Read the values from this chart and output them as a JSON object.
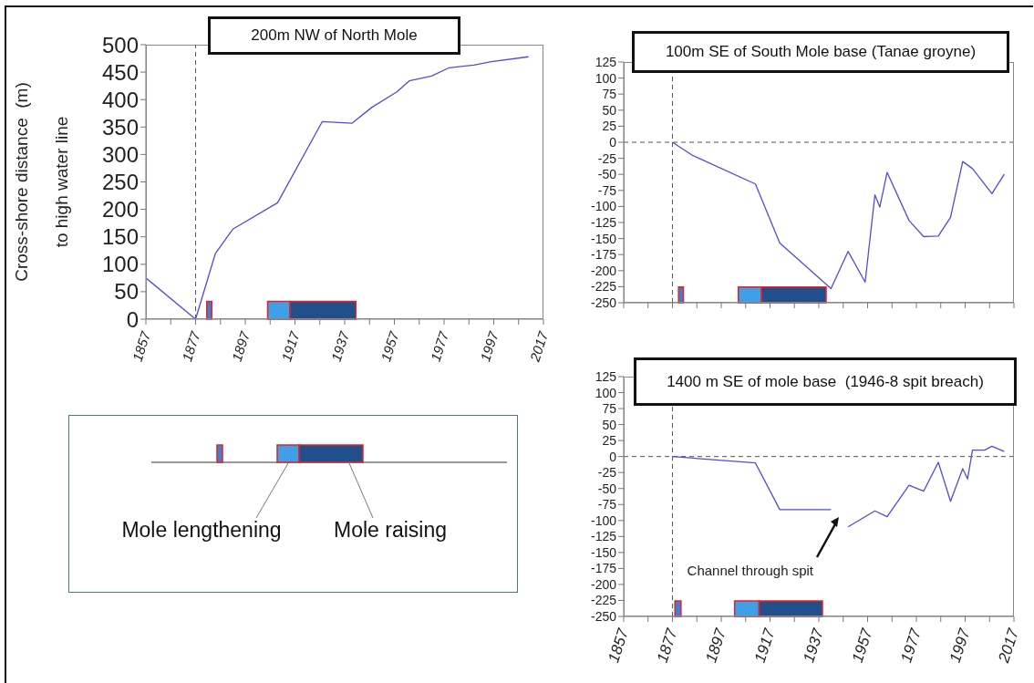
{
  "chart_data": [
    {
      "type": "line",
      "title": "200m NW of North Mole",
      "ylabel": "Cross-shore distance  (m)\nto high water line",
      "x": [
        1857,
        1877,
        1885,
        1892,
        1910,
        1928,
        1940,
        1948,
        1958,
        1963,
        1972,
        1979,
        1989,
        1996,
        2011
      ],
      "values": [
        75,
        0,
        120,
        164,
        212,
        360,
        357,
        386,
        414,
        434,
        443,
        458,
        463,
        469,
        478
      ],
      "color": "#4c4ce0",
      "marker": "none",
      "line_style": "solid",
      "xlim": [
        1857,
        2017
      ],
      "xticks": [
        1857,
        {
          "value": 1867,
          "label": null
        },
        1877,
        {
          "value": 1887,
          "label": null
        },
        1897,
        {
          "value": 1907,
          "label": null
        },
        1917,
        {
          "value": 1927,
          "label": null
        },
        1937,
        {
          "value": 1947,
          "label": null
        },
        1957,
        {
          "value": 1967,
          "label": null
        },
        1977,
        {
          "value": 1987,
          "label": null
        },
        1997,
        {
          "value": 2007,
          "label": null
        },
        2017
      ],
      "ylim": [
        0,
        500
      ],
      "yticks": [
        0,
        50,
        100,
        150,
        200,
        250,
        300,
        350,
        400,
        450,
        500
      ],
      "ref_lines": [
        {
          "axis": "x",
          "value": 1877,
          "line_style": "dashed",
          "color": "#555555"
        }
      ],
      "bands": [
        {
          "axis": "x",
          "from": 1881.5,
          "to": 1883.5,
          "color": "#3f7fcf"
        },
        {
          "axis": "x",
          "from": 1906,
          "to": 1915,
          "color": "#3fa0e8"
        },
        {
          "axis": "x",
          "from": 1915,
          "to": 1941.5,
          "color": "#214f8c"
        }
      ]
    },
    {
      "type": "line",
      "title": "100m SE of South Mole base (Tanae groyne)",
      "x": [
        1877,
        1885,
        1911,
        1921,
        1942,
        1949,
        1956,
        1960,
        1962,
        1965,
        1974,
        1980,
        1986,
        1991,
        1996,
        2000,
        2008,
        2013
      ],
      "values": [
        0,
        -20,
        -65,
        -157,
        -228,
        -170,
        -218,
        -82,
        -101,
        -47,
        -122,
        -147,
        -146,
        -117,
        -30,
        -41,
        -80,
        -50
      ],
      "color": "#4c4ce0",
      "marker": "none",
      "line_style": "solid",
      "tick_labels": "y",
      "xlim": [
        1857,
        2017
      ],
      "xticks": [
        1857,
        1867,
        1877,
        1887,
        1897,
        1907,
        1917,
        1927,
        1937,
        1947,
        1957,
        1967,
        1977,
        1987,
        1997,
        2007,
        2017
      ],
      "ylim": [
        -250,
        125
      ],
      "yticks": [
        -250,
        -225,
        -200,
        -175,
        -150,
        -125,
        -100,
        -75,
        -50,
        -25,
        0,
        25,
        50,
        75,
        100,
        125
      ],
      "ref_lines": [
        {
          "axis": "x",
          "value": 1877,
          "line_style": "dashed",
          "color": "#555555"
        },
        {
          "axis": "y",
          "value": 0,
          "line_style": "dashed",
          "color": "#555555"
        }
      ],
      "bands": [
        {
          "axis": "x",
          "from": 1879.5,
          "to": 1881.5,
          "color": "#3f7fcf"
        },
        {
          "axis": "x",
          "from": 1904,
          "to": 1913.5,
          "color": "#3fa0e8"
        },
        {
          "axis": "x",
          "from": 1913.5,
          "to": 1940,
          "color": "#214f8c"
        }
      ]
    },
    {
      "type": "other",
      "annotations": [
        "Mole lengthening",
        "Mole raising"
      ]
    },
    {
      "type": "line",
      "title": "1400 m SE of mole base  (1946-8 spit breach)",
      "x": [
        1877,
        1911,
        1921,
        1942,
        1945,
        1949,
        1960,
        1965,
        1974,
        1980,
        1986,
        1991,
        1996,
        1998,
        2000,
        2005,
        2008,
        2013
      ],
      "values": [
        0,
        -10,
        -83,
        -83,
        null,
        -110,
        -85,
        -94,
        -45,
        -54,
        -9,
        -70,
        -19,
        -35,
        10,
        10,
        16,
        8
      ],
      "color": "#4c4ce0",
      "marker": "none",
      "line_style": "solid",
      "annotations": [
        "Channel through spit"
      ],
      "xlim": [
        1857,
        2017
      ],
      "xticks": [
        1857,
        {
          "value": 1867,
          "label": null
        },
        1877,
        {
          "value": 1887,
          "label": null
        },
        1897,
        {
          "value": 1907,
          "label": null
        },
        1917,
        {
          "value": 1927,
          "label": null
        },
        1937,
        {
          "value": 1947,
          "label": null
        },
        1957,
        {
          "value": 1967,
          "label": null
        },
        1977,
        {
          "value": 1987,
          "label": null
        },
        1997,
        {
          "value": 2007,
          "label": null
        },
        2017
      ],
      "ylim": [
        -250,
        125
      ],
      "yticks": [
        -250,
        -225,
        -200,
        -175,
        -150,
        -125,
        -100,
        -75,
        -50,
        -25,
        0,
        25,
        50,
        75,
        100,
        125
      ],
      "ref_lines": [
        {
          "axis": "x",
          "value": 1877,
          "line_style": "dashed",
          "color": "#555555"
        },
        {
          "axis": "y",
          "value": 0,
          "line_style": "dashed",
          "color": "#555555"
        }
      ],
      "bands": [
        {
          "axis": "x",
          "from": 1878,
          "to": 1880.5,
          "color": "#3f7fcf"
        },
        {
          "axis": "x",
          "from": 1902.5,
          "to": 1912.5,
          "color": "#3fa0e8"
        },
        {
          "axis": "x",
          "from": 1912.5,
          "to": 1938.5,
          "color": "#214f8c"
        }
      ]
    }
  ]
}
